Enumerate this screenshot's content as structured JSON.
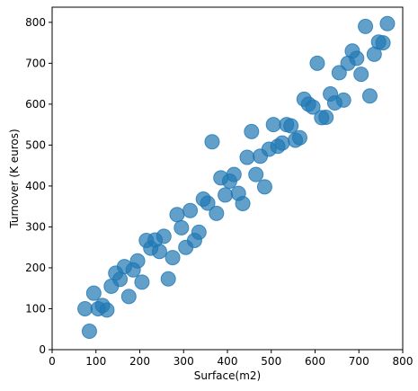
{
  "chart_data": {
    "type": "scatter",
    "x_label": "Surface(m2)",
    "y_label": "Turnover (K euros)",
    "color": "#1f77b4",
    "xlim": [
      0,
      800
    ],
    "ylim": [
      0,
      837
    ],
    "xticks": [
      0,
      100,
      200,
      300,
      400,
      500,
      600,
      700,
      800
    ],
    "yticks": [
      0,
      100,
      200,
      300,
      400,
      500,
      600,
      700,
      800
    ],
    "x": [
      75,
      85,
      95,
      105,
      115,
      125,
      135,
      145,
      155,
      165,
      175,
      185,
      195,
      205,
      215,
      225,
      235,
      245,
      255,
      265,
      275,
      285,
      295,
      305,
      315,
      325,
      335,
      345,
      355,
      365,
      375,
      385,
      395,
      405,
      415,
      425,
      435,
      445,
      455,
      465,
      475,
      485,
      495,
      505,
      515,
      525,
      535,
      545,
      555,
      565,
      575,
      585,
      595,
      605,
      615,
      625,
      635,
      645,
      655,
      665,
      675,
      685,
      695,
      705,
      715,
      725,
      735,
      745,
      755,
      765
    ],
    "values": [
      100,
      45,
      138,
      100,
      108,
      97,
      155,
      187,
      172,
      203,
      130,
      195,
      217,
      165,
      267,
      248,
      268,
      240,
      277,
      173,
      225,
      330,
      298,
      250,
      340,
      267,
      287,
      368,
      358,
      508,
      333,
      420,
      378,
      412,
      428,
      382,
      357,
      470,
      533,
      428,
      473,
      398,
      490,
      550,
      497,
      505,
      550,
      547,
      512,
      518,
      612,
      600,
      593,
      700,
      567,
      568,
      625,
      603,
      677,
      610,
      700,
      730,
      712,
      673,
      790,
      620,
      722,
      752,
      750,
      797
    ]
  }
}
